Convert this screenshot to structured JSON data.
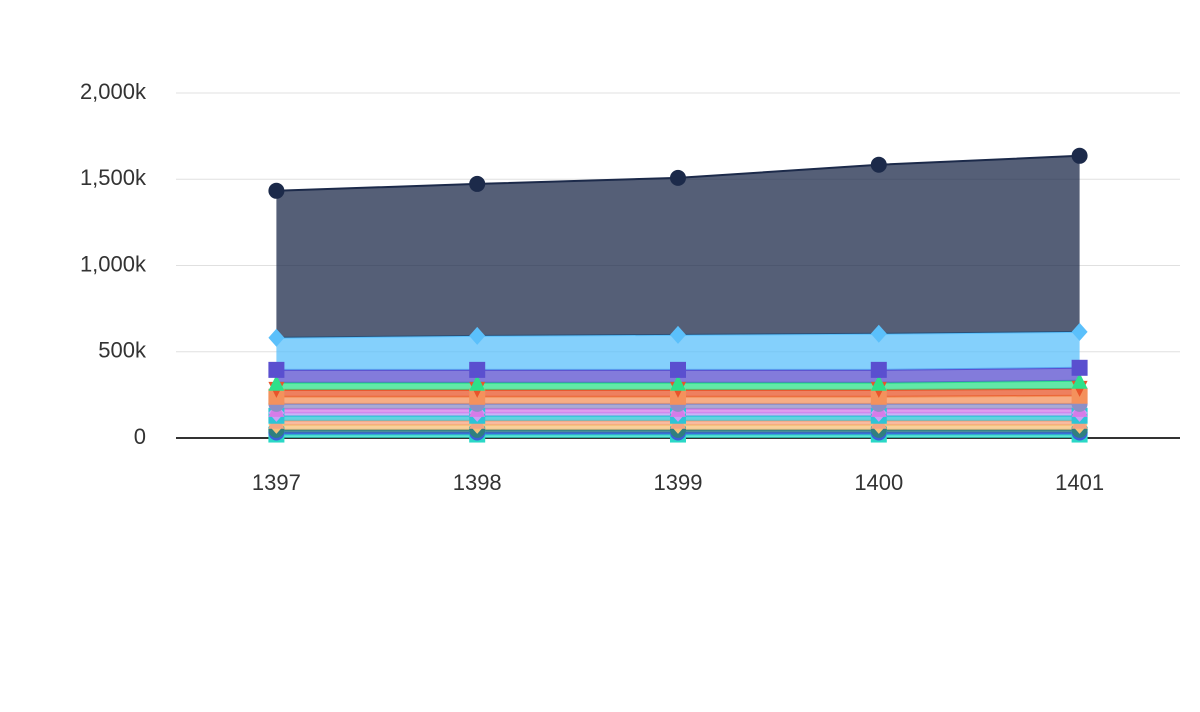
{
  "chart_data": {
    "type": "stacked_area",
    "categories": [
      "1397",
      "1398",
      "1399",
      "1400",
      "1401"
    ],
    "ylim": [
      0,
      2000000
    ],
    "yticks": [
      0,
      {
        "value": 500000,
        "label": "500k"
      },
      {
        "value": 1000000,
        "label": "1,000k"
      },
      {
        "value": 1500000,
        "label": "1,500k"
      },
      {
        "value": 2000000,
        "label": "2,000k"
      }
    ],
    "grid": true,
    "series": [
      {
        "color": "#2ad8c6",
        "marker": "square",
        "values": [
          20000,
          20000,
          20000,
          20000,
          20000
        ]
      },
      {
        "color": "#3d5fd9",
        "marker": "circle",
        "values": [
          12000,
          12000,
          12000,
          12000,
          12000
        ]
      },
      {
        "color": "#2f8080",
        "marker": "circle",
        "values": [
          15000,
          15000,
          15000,
          15000,
          15000
        ]
      },
      {
        "color": "#f5c07a",
        "marker": "diamond",
        "values": [
          29000,
          29000,
          29000,
          29000,
          29000
        ]
      },
      {
        "color": "#f4a582",
        "marker": "triangle",
        "values": [
          24000,
          24000,
          24000,
          24000,
          24000
        ]
      },
      {
        "color": "#2ec4d6",
        "marker": "square",
        "values": [
          29000,
          29000,
          29000,
          29000,
          29000
        ]
      },
      {
        "color": "#c9a0f5",
        "marker": "diamond",
        "values": [
          17000,
          17000,
          17000,
          17000,
          17000
        ]
      },
      {
        "color": "#d67ce8",
        "marker": "triangle",
        "values": [
          23000,
          23000,
          23000,
          23000,
          23000
        ]
      },
      {
        "color": "#8c8fc7",
        "marker": "circle",
        "values": [
          29000,
          29000,
          29000,
          29000,
          29000
        ]
      },
      {
        "color": "#f4915c",
        "marker": "square",
        "values": [
          41000,
          41000,
          41000,
          41000,
          47000
        ]
      },
      {
        "color": "#e8552a",
        "marker": "triangle-down",
        "values": [
          40000,
          40000,
          40000,
          40000,
          40000
        ]
      },
      {
        "color": "#2de08a",
        "marker": "triangle",
        "values": [
          41000,
          41000,
          41000,
          41000,
          47000
        ]
      },
      {
        "color": "#5a4fcf",
        "marker": "square",
        "values": [
          75000,
          75000,
          75000,
          75000,
          75000
        ]
      },
      {
        "color": "#5bc0fb",
        "marker": "diamond",
        "values": [
          186000,
          197000,
          203000,
          209000,
          208000
        ]
      },
      {
        "color": "#1c2a4a",
        "marker": "circle",
        "values": [
          852000,
          881000,
          910000,
          980000,
          1021000
        ]
      }
    ]
  }
}
